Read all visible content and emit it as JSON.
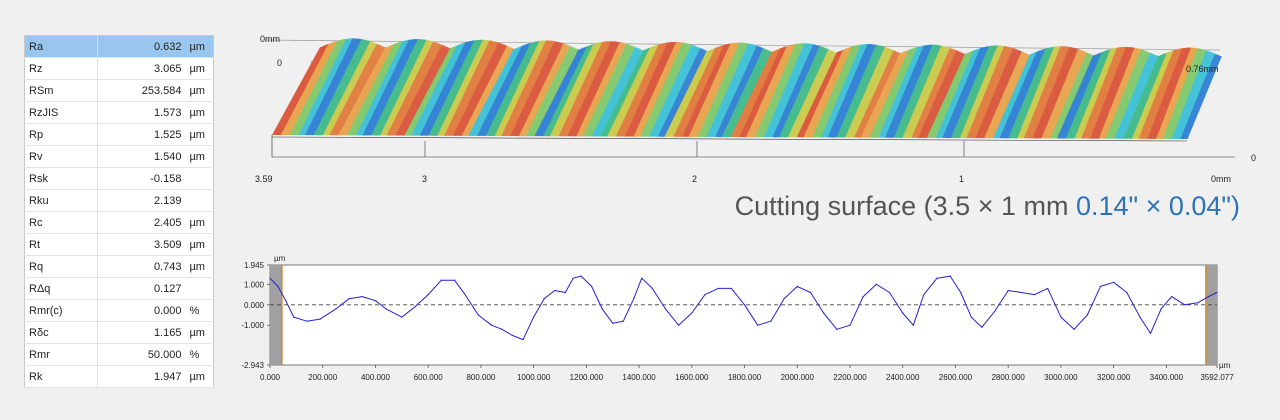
{
  "parameters": [
    {
      "name": "Ra",
      "value": "0.632",
      "unit": "µm"
    },
    {
      "name": "Rz",
      "value": "3.065",
      "unit": "µm"
    },
    {
      "name": "RSm",
      "value": "253.584",
      "unit": "µm"
    },
    {
      "name": "RzJIS",
      "value": "1.573",
      "unit": "µm"
    },
    {
      "name": "Rp",
      "value": "1.525",
      "unit": "µm"
    },
    {
      "name": "Rv",
      "value": "1.540",
      "unit": "µm"
    },
    {
      "name": "Rsk",
      "value": "-0.158",
      "unit": ""
    },
    {
      "name": "Rku",
      "value": "2.139",
      "unit": ""
    },
    {
      "name": "Rc",
      "value": "2.405",
      "unit": "µm"
    },
    {
      "name": "Rt",
      "value": "3.509",
      "unit": "µm"
    },
    {
      "name": "Rq",
      "value": "0.743",
      "unit": "µm"
    },
    {
      "name": "RΔq",
      "value": "0.127",
      "unit": ""
    },
    {
      "name": "Rmr(c)",
      "value": "0.000",
      "unit": "%"
    },
    {
      "name": "Rδc",
      "value": "1.165",
      "unit": "µm"
    },
    {
      "name": "Rmr",
      "value": "50.000",
      "unit": "%"
    },
    {
      "name": "Rk",
      "value": "1.947",
      "unit": "µm"
    }
  ],
  "caption": {
    "main": "Cutting surface (3.5 × 1 mm ",
    "imperial": "0.14\" × 0.04\")"
  },
  "surface_3d": {
    "labels": {
      "z_top": "0mm",
      "z_zero": "0",
      "y_end": "0.76mm",
      "y_zero": "0",
      "x_origin": "0mm",
      "x_end": "3.59",
      "x_ticks": [
        "3",
        "2",
        "1"
      ]
    },
    "ridge_count": 14,
    "palette": [
      "#d9553a",
      "#e8a24c",
      "#7fc86a",
      "#3cc0d6",
      "#2f7fd4",
      "#3fb98a",
      "#c9c94a",
      "#e07a3c"
    ]
  },
  "chart_data": {
    "type": "line",
    "title": "",
    "xlabel": "µm",
    "ylabel": "µm",
    "xlim": [
      0,
      3592.077
    ],
    "ylim": [
      -2.943,
      1.945
    ],
    "y_ticks": [
      1.945,
      1.0,
      0.0,
      -1.0,
      -2.943
    ],
    "y_tick_labels": [
      "1.945",
      "1.000",
      "0.000",
      "-1.000",
      "-2.943"
    ],
    "x_ticks": [
      0,
      200,
      400,
      600,
      800,
      1000,
      1200,
      1400,
      1600,
      1800,
      2000,
      2200,
      2400,
      2600,
      2800,
      3000,
      3200,
      3400,
      3592.077
    ],
    "x_tick_labels": [
      "0.000",
      "200.000",
      "400.000",
      "600.000",
      "800.000",
      "1000.000",
      "1200.000",
      "1400.000",
      "1600.000",
      "1800.000",
      "2000.000",
      "2200.000",
      "2400.000",
      "2600.000",
      "2800.000",
      "3000.000",
      "3200.000",
      "3400.000",
      "3592.077"
    ],
    "excluded_regions": [
      [
        0,
        45
      ],
      [
        3550,
        3592.077
      ]
    ],
    "baseline": 0.0,
    "series": [
      {
        "color": "#2222cc",
        "x": [
          0,
          30,
          60,
          90,
          140,
          190,
          250,
          300,
          350,
          400,
          440,
          500,
          550,
          600,
          650,
          700,
          740,
          790,
          840,
          880,
          920,
          960,
          1000,
          1040,
          1080,
          1120,
          1150,
          1180,
          1220,
          1260,
          1300,
          1340,
          1380,
          1410,
          1450,
          1500,
          1550,
          1600,
          1650,
          1700,
          1750,
          1800,
          1850,
          1900,
          1950,
          2000,
          2050,
          2100,
          2150,
          2200,
          2250,
          2300,
          2350,
          2400,
          2440,
          2480,
          2530,
          2580,
          2620,
          2660,
          2700,
          2750,
          2800,
          2850,
          2900,
          2950,
          3000,
          3050,
          3100,
          3150,
          3200,
          3250,
          3300,
          3340,
          3380,
          3420,
          3470,
          3520,
          3560,
          3592
        ],
        "y": [
          1.3,
          0.9,
          0.2,
          -0.6,
          -0.8,
          -0.7,
          -0.2,
          0.3,
          0.4,
          0.2,
          -0.2,
          -0.6,
          -0.1,
          0.5,
          1.2,
          1.2,
          0.5,
          -0.5,
          -1.0,
          -1.2,
          -1.5,
          -1.7,
          -0.6,
          0.3,
          0.7,
          0.6,
          1.3,
          1.4,
          0.9,
          -0.2,
          -0.9,
          -0.8,
          0.3,
          1.3,
          0.8,
          -0.2,
          -1.0,
          -0.4,
          0.5,
          0.8,
          0.8,
          0.0,
          -1.0,
          -0.8,
          0.3,
          0.9,
          0.6,
          -0.4,
          -1.2,
          -1.0,
          0.4,
          1.0,
          0.6,
          -0.4,
          -1.0,
          0.5,
          1.3,
          1.4,
          0.6,
          -0.6,
          -1.1,
          -0.3,
          0.7,
          0.6,
          0.5,
          0.8,
          -0.6,
          -1.2,
          -0.5,
          0.9,
          1.1,
          0.6,
          -0.6,
          -1.4,
          -0.2,
          0.4,
          0.0,
          0.1,
          0.4,
          0.6
        ]
      }
    ]
  }
}
